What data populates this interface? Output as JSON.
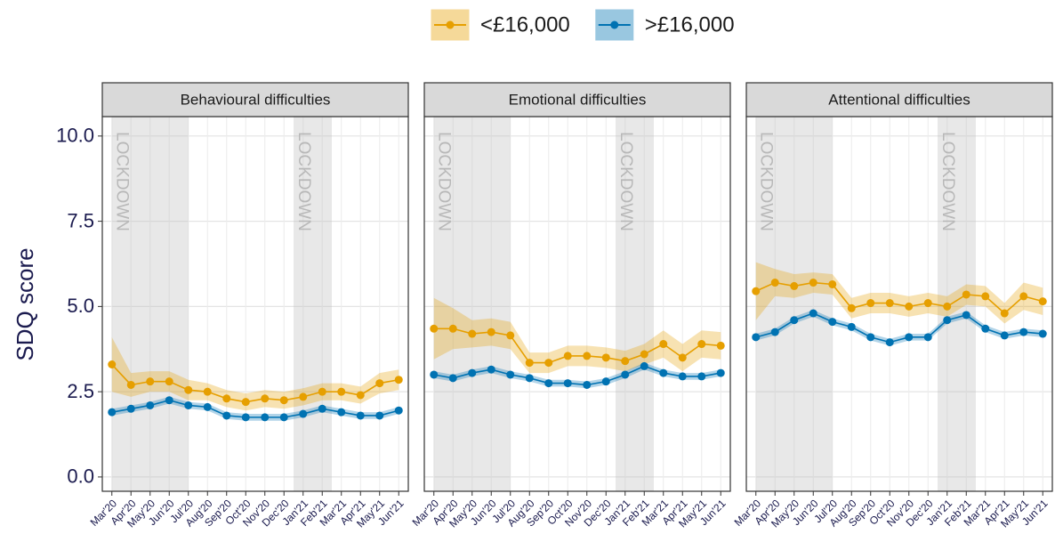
{
  "legend": {
    "position": "top"
  },
  "chart_data": [
    {
      "type": "line",
      "title": "Behavioural difficulties",
      "y_label": "SDQ score",
      "categories": [
        "Mar'20",
        "Apr'20",
        "May'20",
        "Jun'20",
        "Jul'20",
        "Aug'20",
        "Sep'20",
        "Oct'20",
        "Nov'20",
        "Dec'20",
        "Jan'21",
        "Feb'21",
        "Mar'21",
        "Apr'21",
        "May'21",
        "Jun'21"
      ],
      "series": [
        {
          "name": "<£16,000",
          "color": "#E69F00",
          "values": [
            3.3,
            2.7,
            2.8,
            2.8,
            2.55,
            2.5,
            2.3,
            2.2,
            2.3,
            2.25,
            2.35,
            2.5,
            2.5,
            2.4,
            2.75,
            2.85
          ],
          "ci_lower": [
            2.5,
            2.35,
            2.5,
            2.5,
            2.25,
            2.25,
            2.05,
            1.95,
            2.05,
            2.0,
            2.1,
            2.25,
            2.25,
            2.15,
            2.45,
            2.55
          ],
          "ci_upper": [
            4.1,
            3.05,
            3.1,
            3.1,
            2.85,
            2.75,
            2.55,
            2.45,
            2.55,
            2.5,
            2.6,
            2.75,
            2.75,
            2.65,
            3.05,
            3.15
          ]
        },
        {
          "name": ">£16,000",
          "color": "#0072B2",
          "values": [
            1.9,
            2.0,
            2.1,
            2.25,
            2.1,
            2.05,
            1.8,
            1.75,
            1.75,
            1.75,
            1.85,
            2.0,
            1.9,
            1.8,
            1.8,
            1.95
          ],
          "ci_lower": [
            1.8,
            1.9,
            2.0,
            2.15,
            2.0,
            1.95,
            1.7,
            1.65,
            1.65,
            1.65,
            1.75,
            1.9,
            1.8,
            1.7,
            1.7,
            1.85
          ],
          "ci_upper": [
            2.0,
            2.1,
            2.2,
            2.35,
            2.2,
            2.15,
            1.9,
            1.85,
            1.85,
            1.85,
            1.95,
            2.1,
            2.0,
            1.9,
            1.9,
            2.05
          ]
        }
      ],
      "shaded": [
        {
          "label": "LOCKDOWN",
          "start": 0,
          "end": 4
        },
        {
          "label": "LOCKDOWN",
          "start": 9.5,
          "end": 11.5
        }
      ],
      "ylim": [
        -0.42,
        10.57
      ],
      "yticks": [
        {
          "value": 0,
          "label": "0.0"
        },
        2.5,
        {
          "value": 5,
          "label": "5.0"
        },
        7.5,
        {
          "value": 10,
          "label": "10.0"
        }
      ],
      "grid": true
    },
    {
      "type": "line",
      "title": "Emotional difficulties",
      "categories": [
        "Mar'20",
        "Apr'20",
        "May'20",
        "Jun'20",
        "Jul'20",
        "Aug'20",
        "Sep'20",
        "Oct'20",
        "Nov'20",
        "Dec'20",
        "Jan'21",
        "Feb'21",
        "Mar'21",
        "Apr'21",
        "May'21",
        "Jun'21"
      ],
      "series": [
        {
          "name": "<£16,000",
          "color": "#E69F00",
          "values": [
            4.35,
            4.35,
            4.2,
            4.25,
            4.15,
            3.35,
            3.35,
            3.55,
            3.55,
            3.5,
            3.4,
            3.6,
            3.9,
            3.5,
            3.9,
            3.85
          ],
          "ci_lower": [
            3.45,
            3.75,
            3.8,
            3.85,
            3.75,
            3.05,
            3.05,
            3.25,
            3.25,
            3.2,
            3.1,
            3.3,
            3.5,
            3.1,
            3.5,
            3.45
          ],
          "ci_upper": [
            5.25,
            4.95,
            4.6,
            4.65,
            4.55,
            3.65,
            3.65,
            3.85,
            3.85,
            3.8,
            3.7,
            3.9,
            4.3,
            3.9,
            4.3,
            4.25
          ]
        },
        {
          "name": ">£16,000",
          "color": "#0072B2",
          "values": [
            3.0,
            2.9,
            3.05,
            3.15,
            3.0,
            2.9,
            2.75,
            2.75,
            2.7,
            2.8,
            3.0,
            3.25,
            3.05,
            2.95,
            2.95,
            3.05
          ],
          "ci_lower": [
            2.9,
            2.8,
            2.95,
            3.05,
            2.9,
            2.8,
            2.65,
            2.65,
            2.6,
            2.7,
            2.9,
            3.15,
            2.95,
            2.85,
            2.85,
            2.95
          ],
          "ci_upper": [
            3.1,
            3.0,
            3.15,
            3.25,
            3.1,
            3.0,
            2.85,
            2.85,
            2.8,
            2.9,
            3.1,
            3.35,
            3.15,
            3.05,
            3.05,
            3.15
          ]
        }
      ],
      "shaded": [
        {
          "label": "LOCKDOWN",
          "start": 0,
          "end": 4
        },
        {
          "label": "LOCKDOWN",
          "start": 9.5,
          "end": 11.5
        }
      ],
      "ylim": [
        -0.42,
        10.57
      ],
      "yticks": [
        0,
        2.5,
        5,
        7.5,
        10
      ],
      "grid": true
    },
    {
      "type": "line",
      "title": "Attentional difficulties",
      "categories": [
        "Mar'20",
        "Apr'20",
        "May'20",
        "Jun'20",
        "Jul'20",
        "Aug'20",
        "Sep'20",
        "Oct'20",
        "Nov'20",
        "Dec'20",
        "Jan'21",
        "Feb'21",
        "Mar'21",
        "Apr'21",
        "May'21",
        "Jun'21"
      ],
      "series": [
        {
          "name": "<£16,000",
          "color": "#E69F00",
          "values": [
            5.45,
            5.7,
            5.6,
            5.7,
            5.65,
            4.95,
            5.1,
            5.1,
            5.0,
            5.1,
            5.0,
            5.35,
            5.3,
            4.8,
            5.3,
            5.15
          ],
          "ci_lower": [
            4.6,
            5.3,
            5.25,
            5.4,
            5.35,
            4.65,
            4.8,
            4.8,
            4.7,
            4.8,
            4.7,
            5.05,
            5.0,
            4.5,
            4.9,
            4.75
          ],
          "ci_upper": [
            6.3,
            6.1,
            5.95,
            6.0,
            5.95,
            5.25,
            5.4,
            5.4,
            5.3,
            5.4,
            5.3,
            5.65,
            5.6,
            5.1,
            5.7,
            5.55
          ]
        },
        {
          "name": ">£16,000",
          "color": "#0072B2",
          "values": [
            4.1,
            4.25,
            4.6,
            4.8,
            4.55,
            4.4,
            4.1,
            3.95,
            4.1,
            4.1,
            4.6,
            4.75,
            4.35,
            4.15,
            4.25,
            4.2
          ],
          "ci_lower": [
            4.0,
            4.15,
            4.5,
            4.7,
            4.45,
            4.3,
            4.0,
            3.85,
            4.0,
            4.0,
            4.5,
            4.65,
            4.25,
            4.05,
            4.15,
            4.1
          ],
          "ci_upper": [
            4.2,
            4.35,
            4.7,
            4.9,
            4.65,
            4.5,
            4.2,
            4.05,
            4.2,
            4.2,
            4.7,
            4.85,
            4.45,
            4.25,
            4.35,
            4.3
          ]
        }
      ],
      "shaded": [
        {
          "label": "LOCKDOWN",
          "start": 0,
          "end": 4
        },
        {
          "label": "LOCKDOWN",
          "start": 9.5,
          "end": 11.5
        }
      ],
      "ylim": [
        -0.42,
        10.57
      ],
      "yticks": [
        0,
        2.5,
        5,
        7.5,
        10
      ],
      "grid": true
    }
  ]
}
